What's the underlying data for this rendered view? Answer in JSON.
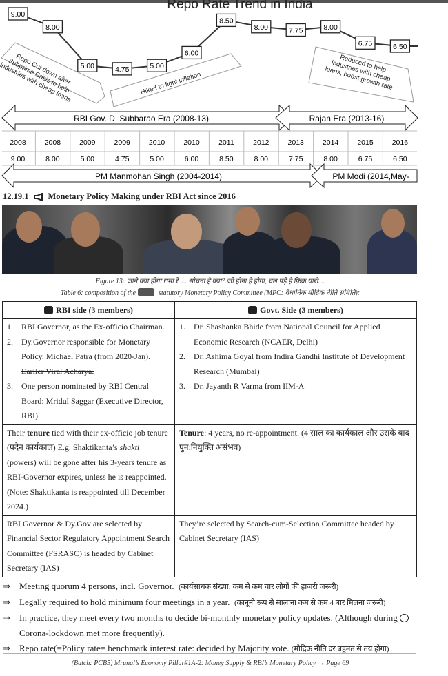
{
  "chart_data": {
    "type": "line",
    "title": "Repo Rate Trend in India",
    "categories": [
      "2008",
      "2008",
      "2009",
      "2009",
      "2010",
      "2010",
      "2011",
      "2012",
      "2013",
      "2014",
      "2015",
      "2016"
    ],
    "values": [
      9.0,
      8.0,
      5.0,
      4.75,
      5.0,
      6.0,
      8.5,
      8.0,
      7.75,
      8.0,
      6.75,
      6.5
    ],
    "value_labels": [
      "9.00",
      "8.00",
      "5.00",
      "4.75",
      "5.00",
      "6.00",
      "8.50",
      "8.00",
      "7.75",
      "8.00",
      "6.75",
      "6.50"
    ],
    "annotations": [
      "Repo Cut down after Subprime Crisis to help industries with cheap loans",
      "Hiked to fight inflation",
      "Reduced to help industries with cheap loans, boost growth rate"
    ],
    "eras": [
      "RBI Gov. D. Subbarao Era (2008-13)",
      "Rajan Era (2013-16)"
    ],
    "pm_eras": [
      "PM Manmohan Singh (2004-2014)",
      "PM Modi (2014,May-"
    ]
  },
  "section": {
    "number": "12.19.1",
    "icon": "megaphone-icon",
    "title": "Monetary Policy Making under RBI Act since 2016"
  },
  "figure_caption": "Figure 13: जाने क्या होगा रामा रे..... सोचना है क्या? जो होना है होगा, चल पड़े है फ़िक्र यारो....",
  "table_caption_pre": "Table 6: composition of the",
  "table_caption_post": "statutory Monetary Policy Committee (MPC: वैधानिक मौद्रिक नीति समिति):",
  "table": {
    "rbi_header": "RBI side (3 members)",
    "govt_header": "Govt. Side (3 members)",
    "rbi_members": [
      {
        "n": "1.",
        "text": "RBI Governor, as the Ex-officio Chairman."
      },
      {
        "n": "2.",
        "text": "Dy.Governor responsible for Monetary Policy. Michael Patra (from 2020-Jan).",
        "struck": "Earlier Viral Acharya."
      },
      {
        "n": "3.",
        "text": "One person nominated by RBI Central Board: Mridul Saggar (Executive Director, RBI)."
      }
    ],
    "govt_members": [
      {
        "n": "1.",
        "text": "Dr. Shashanka Bhide from National Council for Applied Economic Research (NCAER, Delhi)"
      },
      {
        "n": "2.",
        "text": "Dr. Ashima Goyal from Indira Gandhi Institute of Development Research (Mumbai)"
      },
      {
        "n": "3.",
        "text": "Dr. Jayanth R Varma from IIM-A"
      }
    ],
    "rbi_tenure": {
      "pre": "Their ",
      "bold": "tenure",
      "mid": " tied with their ex-officio job tenure (पदेन कार्यकाल) E.g. Shaktikanta’s ",
      "ital": "shakti",
      "post": " (powers) will be gone after his 3-years tenure as RBI-Governor expires, unless he is reappointed. (Note: Shaktikanta is reappointed till December 2024.)"
    },
    "govt_tenure": {
      "bold": "Tenure",
      "post": ": 4 years, no re-appointment. (4 साल का कार्यकाल और उसके बाद पुन:नियुक्ति असंभव)"
    },
    "rbi_selection": "RBI Governor & Dy.Gov are selected by Financial Sector Regulatory Appointment Search Committee (FSRASC) is headed by Cabinet Secretary (IAS)",
    "govt_selection": "They’re selected by Search-cum-Selection Committee headed by Cabinet Secretary (IAS)"
  },
  "bullets": [
    {
      "text": "Meeting quorum 4 persons, incl. Governor.",
      "hindi": "(कार्यसाधक संख्या: कम से कम चार लोगों की हाजरी जरूरी)"
    },
    {
      "text": "Legally required to hold minimum four meetings in a year.",
      "hindi": "(कानूनी रूप से सालाना कम से कम 4 बार मिलना जरूरी)"
    },
    {
      "text": "In practice, they meet every two months to decide bi-monthly monetary policy updates. (Although during",
      "text2": "Corona-lockdown met more frequently)."
    },
    {
      "text": "Repo rate(=Policy rate= benchmark interest rate: decided by Majority vote.",
      "hindi": "(मौद्रिक नीति दर बहुमत से तय होगा)"
    }
  ],
  "footer": "(Batch: PCB5) Mrunal’s Economy Pillar#1A-2: Money Supply & RBI’s Monetary Policy → Page 69"
}
